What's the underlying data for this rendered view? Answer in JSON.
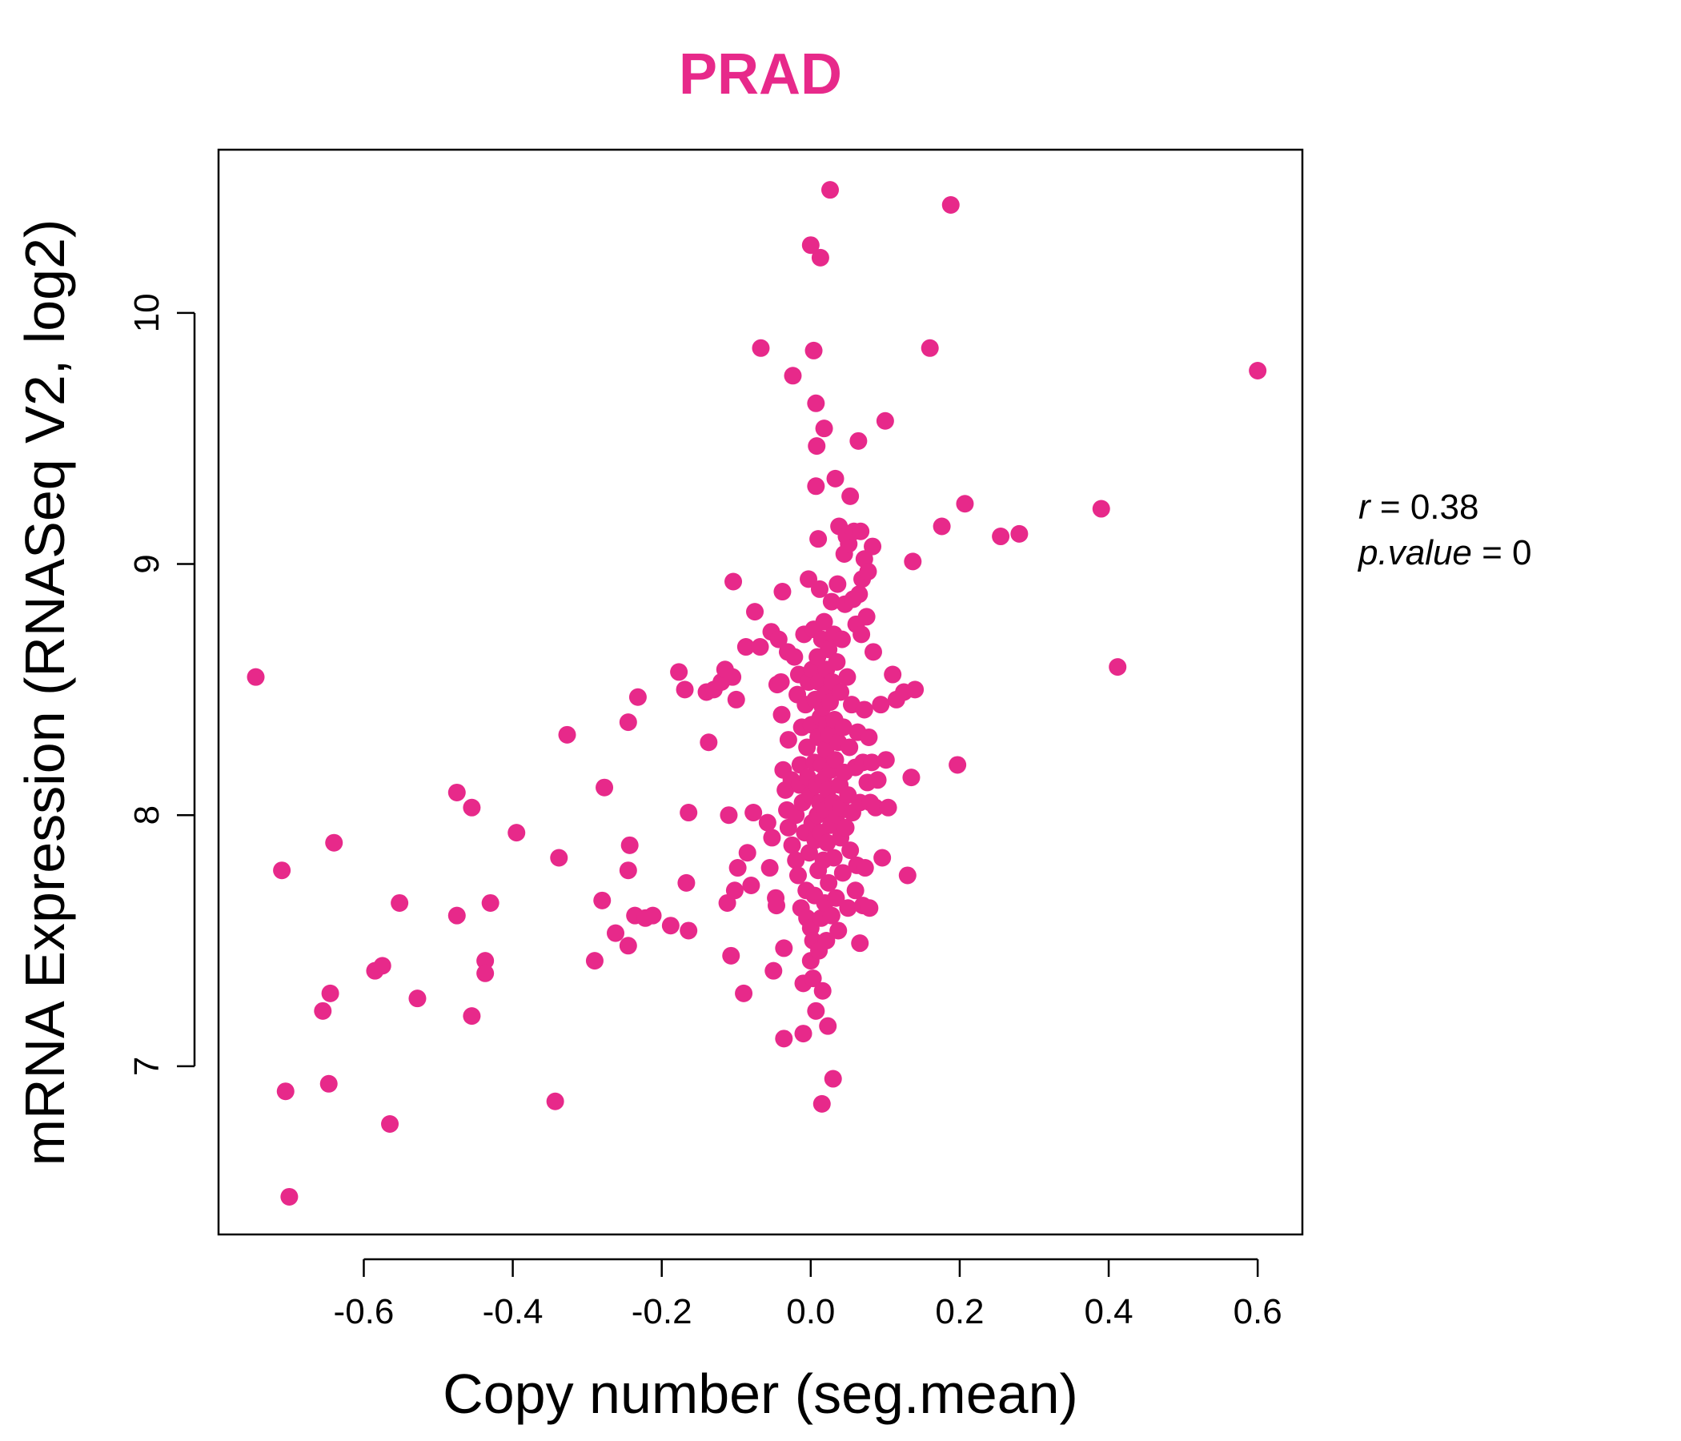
{
  "chart_data": {
    "type": "scatter",
    "title": "PRAD",
    "xlabel": "Copy number (seg.mean)",
    "ylabel": "mRNA Expression (RNASeq V2, log2)",
    "xlim": [
      -0.795,
      0.66
    ],
    "ylim": [
      6.33,
      10.65
    ],
    "x_ticks": [
      -0.6,
      -0.4,
      -0.2,
      0.0,
      0.2,
      0.4,
      0.6
    ],
    "x_tick_labels": [
      "-0.6",
      "-0.4",
      "-0.2",
      "0.0",
      "0.2",
      "0.4",
      "0.6"
    ],
    "y_ticks": [
      7,
      8,
      9,
      10
    ],
    "y_tick_labels": [
      "7",
      "8",
      "9",
      "10"
    ],
    "grid": false,
    "colors": {
      "points": "#E7298A",
      "title": "#E7298A",
      "axes": "#000000"
    },
    "stats": {
      "r_symbol": "r",
      "r_value": "0.38",
      "p_symbol": "p.value",
      "p_value": "0"
    },
    "series": [
      {
        "points": [
          [
            -0.745,
            8.55
          ],
          [
            -0.71,
            7.78
          ],
          [
            -0.705,
            6.9
          ],
          [
            -0.7,
            6.48
          ],
          [
            -0.655,
            7.22
          ],
          [
            -0.645,
            7.29
          ],
          [
            -0.647,
            6.93
          ],
          [
            -0.64,
            7.89
          ],
          [
            -0.585,
            7.38
          ],
          [
            -0.575,
            7.4
          ],
          [
            -0.565,
            6.77
          ],
          [
            -0.552,
            7.65
          ],
          [
            -0.528,
            7.27
          ],
          [
            -0.475,
            8.09
          ],
          [
            -0.475,
            7.6
          ],
          [
            -0.455,
            8.03
          ],
          [
            -0.455,
            7.2
          ],
          [
            -0.437,
            7.42
          ],
          [
            -0.437,
            7.37
          ],
          [
            -0.43,
            7.65
          ],
          [
            -0.395,
            7.93
          ],
          [
            -0.343,
            6.86
          ],
          [
            -0.338,
            7.83
          ],
          [
            -0.327,
            8.32
          ],
          [
            -0.29,
            7.42
          ],
          [
            -0.28,
            7.66
          ],
          [
            -0.277,
            8.11
          ],
          [
            -0.262,
            7.53
          ],
          [
            -0.245,
            7.48
          ],
          [
            -0.245,
            7.78
          ],
          [
            -0.245,
            8.37
          ],
          [
            -0.243,
            7.88
          ],
          [
            -0.236,
            7.6
          ],
          [
            -0.232,
            8.47
          ],
          [
            -0.222,
            7.59
          ],
          [
            -0.212,
            7.6
          ],
          [
            -0.188,
            7.56
          ],
          [
            -0.177,
            8.57
          ],
          [
            -0.169,
            8.5
          ],
          [
            -0.167,
            7.73
          ],
          [
            -0.164,
            7.54
          ],
          [
            -0.164,
            8.01
          ],
          [
            -0.14,
            8.49
          ],
          [
            -0.137,
            8.29
          ],
          [
            -0.13,
            8.5
          ],
          [
            -0.12,
            8.53
          ],
          [
            -0.115,
            8.58
          ],
          [
            -0.112,
            7.65
          ],
          [
            -0.11,
            8.0
          ],
          [
            -0.107,
            7.44
          ],
          [
            -0.105,
            8.55
          ],
          [
            -0.104,
            8.93
          ],
          [
            -0.102,
            7.7
          ],
          [
            -0.1,
            8.46
          ],
          [
            -0.098,
            7.79
          ],
          [
            -0.09,
            7.29
          ],
          [
            -0.087,
            8.67
          ],
          [
            -0.085,
            7.85
          ],
          [
            -0.08,
            7.72
          ],
          [
            -0.077,
            8.01
          ],
          [
            -0.075,
            8.81
          ],
          [
            -0.068,
            8.67
          ],
          [
            -0.067,
            9.86
          ],
          [
            -0.058,
            7.97
          ],
          [
            -0.055,
            7.79
          ],
          [
            -0.053,
            8.73
          ],
          [
            -0.052,
            7.91
          ],
          [
            -0.05,
            7.38
          ],
          [
            -0.047,
            7.67
          ],
          [
            -0.046,
            7.64
          ],
          [
            -0.045,
            8.52
          ],
          [
            -0.043,
            8.7
          ],
          [
            -0.04,
            8.53
          ],
          [
            -0.039,
            8.4
          ],
          [
            -0.038,
            8.89
          ],
          [
            -0.037,
            8.18
          ],
          [
            -0.036,
            7.47
          ],
          [
            -0.036,
            7.11
          ],
          [
            -0.034,
            8.1
          ],
          [
            -0.032,
            8.02
          ],
          [
            -0.031,
            8.65
          ],
          [
            -0.03,
            7.95
          ],
          [
            -0.03,
            8.3
          ],
          [
            -0.026,
            8.14
          ],
          [
            -0.025,
            7.88
          ],
          [
            -0.024,
            9.75
          ],
          [
            -0.022,
            8.63
          ],
          [
            -0.02,
            8.0
          ],
          [
            -0.02,
            7.82
          ],
          [
            -0.018,
            8.48
          ],
          [
            -0.017,
            7.76
          ],
          [
            -0.016,
            8.56
          ],
          [
            -0.015,
            8.12
          ],
          [
            -0.014,
            8.2
          ],
          [
            -0.013,
            7.63
          ],
          [
            -0.012,
            8.35
          ],
          [
            -0.011,
            8.05
          ],
          [
            -0.01,
            7.33
          ],
          [
            -0.01,
            7.13
          ],
          [
            -0.009,
            8.72
          ],
          [
            -0.008,
            7.93
          ],
          [
            -0.007,
            8.44
          ],
          [
            -0.006,
            7.7
          ],
          [
            -0.005,
            8.27
          ],
          [
            -0.005,
            7.59
          ],
          [
            -0.004,
            8.15
          ],
          [
            -0.003,
            8.53
          ],
          [
            -0.003,
            8.94
          ],
          [
            -0.002,
            7.85
          ],
          [
            -0.001,
            8.08
          ],
          [
            0.0,
            10.27
          ],
          [
            0.0,
            7.55
          ],
          [
            0.0,
            7.42
          ],
          [
            0.001,
            8.36
          ],
          [
            0.002,
            7.97
          ],
          [
            0.002,
            8.58
          ],
          [
            0.003,
            7.5
          ],
          [
            0.003,
            7.35
          ],
          [
            0.004,
            9.85
          ],
          [
            0.004,
            8.74
          ],
          [
            0.005,
            8.21
          ],
          [
            0.005,
            7.68
          ],
          [
            0.006,
            8.46
          ],
          [
            0.006,
            7.9
          ],
          [
            0.007,
            9.31
          ],
          [
            0.007,
            7.22
          ],
          [
            0.007,
            9.64
          ],
          [
            0.008,
            8.12
          ],
          [
            0.008,
            9.47
          ],
          [
            0.009,
            8.0
          ],
          [
            0.009,
            8.63
          ],
          [
            0.01,
            7.78
          ],
          [
            0.01,
            8.31
          ],
          [
            0.01,
            9.1
          ],
          [
            0.011,
            7.46
          ],
          [
            0.011,
            8.53
          ],
          [
            0.012,
            8.05
          ],
          [
            0.012,
            8.9
          ],
          [
            0.013,
            8.39
          ],
          [
            0.013,
            10.22
          ],
          [
            0.014,
            7.93
          ],
          [
            0.014,
            7.59
          ],
          [
            0.015,
            8.7
          ],
          [
            0.015,
            8.2
          ],
          [
            0.015,
            6.85
          ],
          [
            0.016,
            8.43
          ],
          [
            0.016,
            7.3
          ],
          [
            0.017,
            7.82
          ],
          [
            0.017,
            8.14
          ],
          [
            0.018,
            8.77
          ],
          [
            0.018,
            9.54
          ],
          [
            0.019,
            8.48
          ],
          [
            0.019,
            7.65
          ],
          [
            0.02,
            8.26
          ],
          [
            0.02,
            8.02
          ],
          [
            0.021,
            8.58
          ],
          [
            0.021,
            7.5
          ],
          [
            0.022,
            8.36
          ],
          [
            0.022,
            7.89
          ],
          [
            0.023,
            7.16
          ],
          [
            0.023,
            8.1
          ],
          [
            0.024,
            8.66
          ],
          [
            0.024,
            7.73
          ],
          [
            0.025,
            8.32
          ],
          [
            0.026,
            10.49
          ],
          [
            0.026,
            8.45
          ],
          [
            0.027,
            7.96
          ],
          [
            0.027,
            8.18
          ],
          [
            0.028,
            8.85
          ],
          [
            0.028,
            7.6
          ],
          [
            0.029,
            8.53
          ],
          [
            0.03,
            8.05
          ],
          [
            0.03,
            6.95
          ],
          [
            0.031,
            8.72
          ],
          [
            0.031,
            7.83
          ],
          [
            0.032,
            8.38
          ],
          [
            0.033,
            9.34
          ],
          [
            0.033,
            8.22
          ],
          [
            0.034,
            7.67
          ],
          [
            0.035,
            8.61
          ],
          [
            0.035,
            8.0
          ],
          [
            0.036,
            8.92
          ],
          [
            0.037,
            7.54
          ],
          [
            0.037,
            8.29
          ],
          [
            0.038,
            9.15
          ],
          [
            0.039,
            8.12
          ],
          [
            0.04,
            7.91
          ],
          [
            0.04,
            8.49
          ],
          [
            0.041,
            8.03
          ],
          [
            0.042,
            8.7
          ],
          [
            0.043,
            7.77
          ],
          [
            0.044,
            8.35
          ],
          [
            0.045,
            9.04
          ],
          [
            0.045,
            8.17
          ],
          [
            0.046,
            8.84
          ],
          [
            0.047,
            7.95
          ],
          [
            0.048,
            9.11
          ],
          [
            0.049,
            8.55
          ],
          [
            0.05,
            8.08
          ],
          [
            0.05,
            7.63
          ],
          [
            0.051,
            9.08
          ],
          [
            0.052,
            8.27
          ],
          [
            0.053,
            9.27
          ],
          [
            0.053,
            7.86
          ],
          [
            0.055,
            8.44
          ],
          [
            0.056,
            8.01
          ],
          [
            0.057,
            8.86
          ],
          [
            0.058,
            9.13
          ],
          [
            0.06,
            7.7
          ],
          [
            0.06,
            8.19
          ],
          [
            0.061,
            8.76
          ],
          [
            0.062,
            7.8
          ],
          [
            0.063,
            8.33
          ],
          [
            0.064,
            9.49
          ],
          [
            0.065,
            8.88
          ],
          [
            0.066,
            8.05
          ],
          [
            0.066,
            7.49
          ],
          [
            0.067,
            9.13
          ],
          [
            0.068,
            8.72
          ],
          [
            0.069,
            8.94
          ],
          [
            0.07,
            8.21
          ],
          [
            0.07,
            7.64
          ],
          [
            0.072,
            9.02
          ],
          [
            0.072,
            8.42
          ],
          [
            0.073,
            7.79
          ],
          [
            0.075,
            8.79
          ],
          [
            0.076,
            8.13
          ],
          [
            0.077,
            8.97
          ],
          [
            0.078,
            8.31
          ],
          [
            0.079,
            7.63
          ],
          [
            0.08,
            8.05
          ],
          [
            0.082,
            8.21
          ],
          [
            0.083,
            9.07
          ],
          [
            0.084,
            8.65
          ],
          [
            0.087,
            8.03
          ],
          [
            0.09,
            8.14
          ],
          [
            0.094,
            8.44
          ],
          [
            0.096,
            7.83
          ],
          [
            0.1,
            9.57
          ],
          [
            0.101,
            8.22
          ],
          [
            0.104,
            8.03
          ],
          [
            0.11,
            8.56
          ],
          [
            0.115,
            8.46
          ],
          [
            0.125,
            8.49
          ],
          [
            0.13,
            7.76
          ],
          [
            0.135,
            8.15
          ],
          [
            0.137,
            9.01
          ],
          [
            0.14,
            8.5
          ],
          [
            0.16,
            9.86
          ],
          [
            0.176,
            9.15
          ],
          [
            0.188,
            10.43
          ],
          [
            0.197,
            8.2
          ],
          [
            0.207,
            9.24
          ],
          [
            0.255,
            9.11
          ],
          [
            0.28,
            9.12
          ],
          [
            0.39,
            9.22
          ],
          [
            0.412,
            8.59
          ],
          [
            0.6,
            9.77
          ]
        ]
      }
    ]
  }
}
